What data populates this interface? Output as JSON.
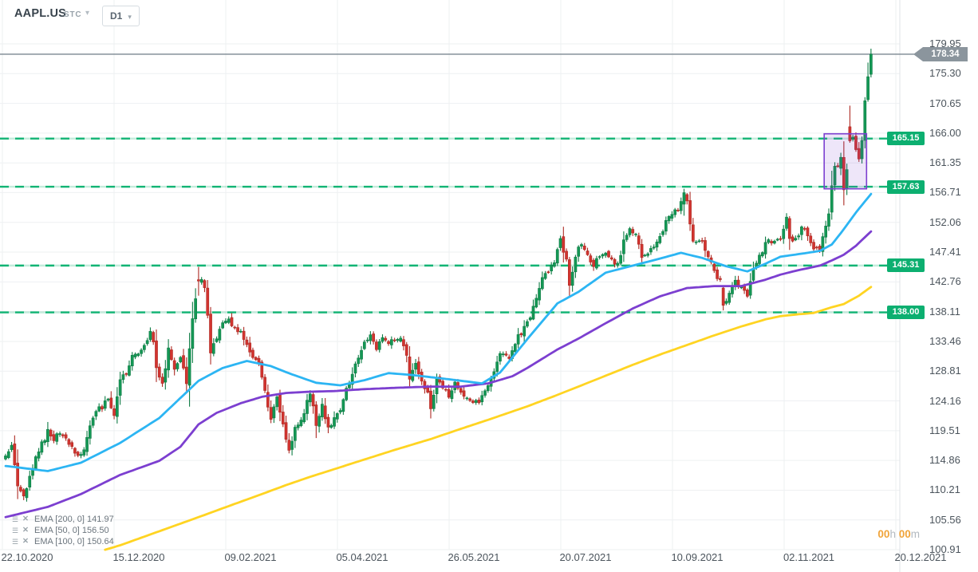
{
  "toolbar": {
    "symbol": "AAPL.US",
    "market": "STC",
    "timeframe": "D1",
    "market_caret": "▾",
    "tf_caret": "▾"
  },
  "y_axis": {
    "ticks": [
      "179.95",
      "175.30",
      "170.65",
      "166.00",
      "161.35",
      "156.71",
      "152.06",
      "147.41",
      "142.76",
      "138.11",
      "133.46",
      "128.81",
      "124.16",
      "119.51",
      "114.86",
      "110.21",
      "105.56",
      "100.91"
    ]
  },
  "x_axis": {
    "dates": [
      "22.10.2020",
      "15.12.2020",
      "09.02.2021",
      "05.04.2021",
      "26.05.2021",
      "20.07.2021",
      "10.09.2021",
      "02.11.2021",
      "20.12.2021"
    ]
  },
  "legend": [
    {
      "label": "EMA [200, 0] 141.97",
      "properties_icon": "☰",
      "close_icon": "✕"
    },
    {
      "label": "EMA [50, 0] 156.50",
      "properties_icon": "☰",
      "close_icon": "✕"
    },
    {
      "label": "EMA [100, 0] 150.64",
      "properties_icon": "☰",
      "close_icon": "✕"
    }
  ],
  "countdown": {
    "hours": "00",
    "hours_unit": "h",
    "minutes": "00",
    "minutes_unit": "m"
  },
  "current_price": {
    "label": "178.34",
    "price": 178.34
  },
  "levels": [
    {
      "label": "165.15",
      "price": 165.15
    },
    {
      "label": "157.63",
      "price": 157.63
    },
    {
      "label": "145.31",
      "price": 145.31
    },
    {
      "label": "138.00",
      "price": 138.0
    }
  ],
  "colors": {
    "level_green": "#12b474",
    "level_badge": "#0caf70",
    "level_pale": "rgba(18,180,116,0.25)",
    "candle_up": "#149855",
    "candle_up_border": "#0f7c45",
    "candle_down": "#d23430",
    "candle_down_border": "#ad2a23",
    "price_line": "#7b8790",
    "price_badge": "#8b959d",
    "grid": "#eef0f2",
    "axis_line": "#dfe3e7",
    "box_border": "#7c3fd0",
    "box_fill": "rgba(124,63,208,0.13)",
    "countdown_orange": "#f0a43a"
  },
  "chart_data": {
    "type": "candlestick",
    "symbol": "AAPL.US",
    "timeframe": "D1",
    "title": "AAPL.US daily candles, 22.10.2020 – 20.12.2021, last price 178.34",
    "bars": 288,
    "y_range": [
      100.91,
      179.95
    ],
    "support_resistance_levels": [
      165.15,
      157.63,
      145.31,
      138.0
    ],
    "last_price": 178.34,
    "close_anchors": [
      [
        0,
        115.8
      ],
      [
        2,
        116.9
      ],
      [
        4,
        111.2
      ],
      [
        6,
        108.9
      ],
      [
        8,
        112.1
      ],
      [
        10,
        115.0
      ],
      [
        12,
        117.5
      ],
      [
        14,
        119.3
      ],
      [
        16,
        118.3
      ],
      [
        18,
        119.4
      ],
      [
        20,
        118.0
      ],
      [
        22,
        116.9
      ],
      [
        24,
        115.2
      ],
      [
        26,
        116.8
      ],
      [
        28,
        120.3
      ],
      [
        30,
        122.6
      ],
      [
        32,
        123.1
      ],
      [
        34,
        124.4
      ],
      [
        36,
        121.8
      ],
      [
        38,
        127.9
      ],
      [
        40,
        128.2
      ],
      [
        42,
        130.9
      ],
      [
        44,
        131.9
      ],
      [
        46,
        132.7
      ],
      [
        48,
        134.9
      ],
      [
        49,
        133.7
      ],
      [
        50,
        129.4
      ],
      [
        52,
        126.7
      ],
      [
        54,
        132.1
      ],
      [
        56,
        128.8
      ],
      [
        58,
        130.9
      ],
      [
        60,
        127.1
      ],
      [
        62,
        136.9
      ],
      [
        64,
        142.9
      ],
      [
        65,
        143.2
      ],
      [
        66,
        142.1
      ],
      [
        67,
        137.1
      ],
      [
        68,
        132.0
      ],
      [
        70,
        134.1
      ],
      [
        72,
        136.0
      ],
      [
        74,
        136.8
      ],
      [
        76,
        135.4
      ],
      [
        78,
        135.1
      ],
      [
        80,
        133.2
      ],
      [
        82,
        130.8
      ],
      [
        84,
        129.9
      ],
      [
        86,
        125.9
      ],
      [
        88,
        121.3
      ],
      [
        90,
        125.1
      ],
      [
        92,
        120.1
      ],
      [
        94,
        116.4
      ],
      [
        96,
        120.0
      ],
      [
        98,
        121.0
      ],
      [
        100,
        124.0
      ],
      [
        101,
        125.6
      ],
      [
        103,
        120.5
      ],
      [
        105,
        123.4
      ],
      [
        107,
        120.1
      ],
      [
        109,
        121.2
      ],
      [
        111,
        123.0
      ],
      [
        113,
        125.9
      ],
      [
        115,
        128.0
      ],
      [
        117,
        131.2
      ],
      [
        119,
        133.0
      ],
      [
        121,
        134.4
      ],
      [
        123,
        132.0
      ],
      [
        125,
        134.2
      ],
      [
        127,
        133.1
      ],
      [
        129,
        133.5
      ],
      [
        131,
        133.6
      ],
      [
        133,
        131.5
      ],
      [
        134,
        127.8
      ],
      [
        136,
        130.2
      ],
      [
        138,
        126.9
      ],
      [
        140,
        125.9
      ],
      [
        141,
        122.8
      ],
      [
        143,
        127.4
      ],
      [
        145,
        126.3
      ],
      [
        147,
        124.7
      ],
      [
        149,
        127.1
      ],
      [
        151,
        125.3
      ],
      [
        153,
        124.6
      ],
      [
        155,
        124.3
      ],
      [
        157,
        123.5
      ],
      [
        159,
        125.9
      ],
      [
        161,
        127.4
      ],
      [
        163,
        130.5
      ],
      [
        165,
        131.8
      ],
      [
        167,
        130.5
      ],
      [
        169,
        133.4
      ],
      [
        171,
        134.8
      ],
      [
        174,
        137.3
      ],
      [
        176,
        139.9
      ],
      [
        178,
        143.2
      ],
      [
        180,
        144.6
      ],
      [
        182,
        145.6
      ],
      [
        184,
        149.2
      ],
      [
        186,
        146.4
      ],
      [
        187,
        142.4
      ],
      [
        189,
        146.8
      ],
      [
        191,
        149.0
      ],
      [
        193,
        147.0
      ],
      [
        195,
        145.6
      ],
      [
        197,
        147.1
      ],
      [
        199,
        147.0
      ],
      [
        201,
        146.1
      ],
      [
        203,
        145.6
      ],
      [
        205,
        148.9
      ],
      [
        207,
        151.1
      ],
      [
        209,
        150.2
      ],
      [
        211,
        146.7
      ],
      [
        213,
        147.5
      ],
      [
        215,
        148.6
      ],
      [
        217,
        149.6
      ],
      [
        219,
        152.5
      ],
      [
        221,
        153.1
      ],
      [
        223,
        154.3
      ],
      [
        225,
        156.7
      ],
      [
        226,
        155.1
      ],
      [
        228,
        149.0
      ],
      [
        230,
        149.6
      ],
      [
        232,
        148.1
      ],
      [
        234,
        146.1
      ],
      [
        236,
        143.4
      ],
      [
        237,
        142.7
      ],
      [
        238,
        139.1
      ],
      [
        240,
        141.0
      ],
      [
        242,
        142.9
      ],
      [
        244,
        141.5
      ],
      [
        246,
        140.9
      ],
      [
        248,
        144.8
      ],
      [
        250,
        146.5
      ],
      [
        252,
        148.8
      ],
      [
        253,
        149.5
      ],
      [
        255,
        148.7
      ],
      [
        257,
        149.3
      ],
      [
        259,
        152.6
      ],
      [
        260,
        149.8
      ],
      [
        261,
        149.0
      ],
      [
        263,
        150.0
      ],
      [
        264,
        151.5
      ],
      [
        266,
        150.4
      ],
      [
        268,
        147.9
      ],
      [
        270,
        147.9
      ],
      [
        271,
        150.0
      ],
      [
        273,
        153.5
      ],
      [
        274,
        157.9
      ],
      [
        275,
        160.6
      ],
      [
        276,
        161.0
      ],
      [
        277,
        161.9
      ],
      [
        278,
        156.8
      ],
      [
        279,
        160.2
      ],
      [
        280,
        164.8
      ],
      [
        281,
        165.0
      ],
      [
        282,
        163.8
      ],
      [
        283,
        161.8
      ],
      [
        284,
        165.3
      ],
      [
        285,
        171.2
      ],
      [
        286,
        175.1
      ],
      [
        287,
        178.34
      ]
    ],
    "candle_overrides": [
      {
        "i": 64,
        "o": 143.1,
        "h": 145.1,
        "l": 140.6,
        "c": 142.9
      },
      {
        "i": 225,
        "o": 154.9,
        "h": 157.3,
        "l": 153.1,
        "c": 156.7
      },
      {
        "i": 238,
        "o": 141.8,
        "h": 142.2,
        "l": 138.3,
        "c": 139.1
      },
      {
        "i": 280,
        "o": 167.0,
        "h": 170.3,
        "l": 164.5,
        "c": 164.8
      },
      {
        "i": 287,
        "o": 175.2,
        "h": 179.2,
        "l": 174.7,
        "c": 178.34
      }
    ],
    "emas": [
      {
        "name": "EMA 200",
        "period": 200,
        "value": 141.97,
        "color": "#ffd422",
        "anchors": [
          [
            33,
            100.9
          ],
          [
            38,
            101.6
          ],
          [
            51,
            103.8
          ],
          [
            64,
            106.0
          ],
          [
            75,
            107.9
          ],
          [
            85,
            109.6
          ],
          [
            93,
            111.0
          ],
          [
            101,
            112.3
          ],
          [
            109,
            113.5
          ],
          [
            119,
            115.0
          ],
          [
            129,
            116.5
          ],
          [
            141,
            118.2
          ],
          [
            146,
            119.0
          ],
          [
            151,
            119.8
          ],
          [
            160,
            121.2
          ],
          [
            168,
            122.5
          ],
          [
            173,
            123.3
          ],
          [
            183,
            125.1
          ],
          [
            190,
            126.4
          ],
          [
            199,
            128.1
          ],
          [
            208,
            129.8
          ],
          [
            217,
            131.4
          ],
          [
            226,
            132.9
          ],
          [
            235,
            134.4
          ],
          [
            244,
            135.8
          ],
          [
            252,
            136.9
          ],
          [
            257,
            137.4
          ],
          [
            263,
            137.7
          ],
          [
            268,
            137.9
          ],
          [
            274,
            138.8
          ],
          [
            278,
            139.3
          ],
          [
            283,
            140.6
          ],
          [
            287,
            141.97
          ]
        ]
      },
      {
        "name": "EMA 100",
        "period": 100,
        "value": 150.64,
        "color": "#7c3fd0",
        "anchors": [
          [
            0,
            106.0
          ],
          [
            14,
            107.6
          ],
          [
            25,
            109.6
          ],
          [
            38,
            112.6
          ],
          [
            51,
            114.8
          ],
          [
            58,
            117.0
          ],
          [
            64,
            120.5
          ],
          [
            70,
            122.3
          ],
          [
            78,
            123.8
          ],
          [
            85,
            124.8
          ],
          [
            93,
            125.4
          ],
          [
            101,
            125.6
          ],
          [
            109,
            125.7
          ],
          [
            119,
            126.0
          ],
          [
            129,
            126.2
          ],
          [
            141,
            126.4
          ],
          [
            151,
            126.4
          ],
          [
            160,
            126.9
          ],
          [
            168,
            128.0
          ],
          [
            173,
            129.3
          ],
          [
            183,
            132.2
          ],
          [
            190,
            133.9
          ],
          [
            199,
            136.3
          ],
          [
            208,
            138.6
          ],
          [
            217,
            140.5
          ],
          [
            226,
            141.8
          ],
          [
            235,
            142.1
          ],
          [
            244,
            142.1
          ],
          [
            252,
            143.1
          ],
          [
            257,
            143.9
          ],
          [
            263,
            144.6
          ],
          [
            270,
            145.3
          ],
          [
            274,
            146.1
          ],
          [
            278,
            147.0
          ],
          [
            282,
            148.4
          ],
          [
            287,
            150.64
          ]
        ]
      },
      {
        "name": "EMA 50",
        "period": 50,
        "value": 156.5,
        "color": "#2cb5f3",
        "anchors": [
          [
            0,
            114.0
          ],
          [
            14,
            113.2
          ],
          [
            25,
            114.5
          ],
          [
            38,
            117.6
          ],
          [
            51,
            121.5
          ],
          [
            64,
            127.3
          ],
          [
            72,
            129.3
          ],
          [
            80,
            130.4
          ],
          [
            88,
            129.6
          ],
          [
            95,
            128.3
          ],
          [
            103,
            127.0
          ],
          [
            111,
            126.6
          ],
          [
            119,
            127.4
          ],
          [
            127,
            128.5
          ],
          [
            135,
            128.2
          ],
          [
            146,
            127.6
          ],
          [
            158,
            126.9
          ],
          [
            164,
            128.6
          ],
          [
            173,
            133.8
          ],
          [
            183,
            139.4
          ],
          [
            190,
            141.2
          ],
          [
            199,
            144.2
          ],
          [
            208,
            145.3
          ],
          [
            217,
            146.4
          ],
          [
            224,
            147.3
          ],
          [
            231,
            146.5
          ],
          [
            239,
            145.2
          ],
          [
            246,
            144.4
          ],
          [
            252,
            145.6
          ],
          [
            257,
            146.7
          ],
          [
            266,
            147.3
          ],
          [
            270,
            147.6
          ],
          [
            274,
            148.6
          ],
          [
            278,
            151.0
          ],
          [
            282,
            153.6
          ],
          [
            287,
            156.5
          ]
        ]
      }
    ],
    "annotation_box": {
      "bar_from": 272,
      "bar_to": 285,
      "price_top": 165.9,
      "price_bottom": 157.3
    }
  }
}
